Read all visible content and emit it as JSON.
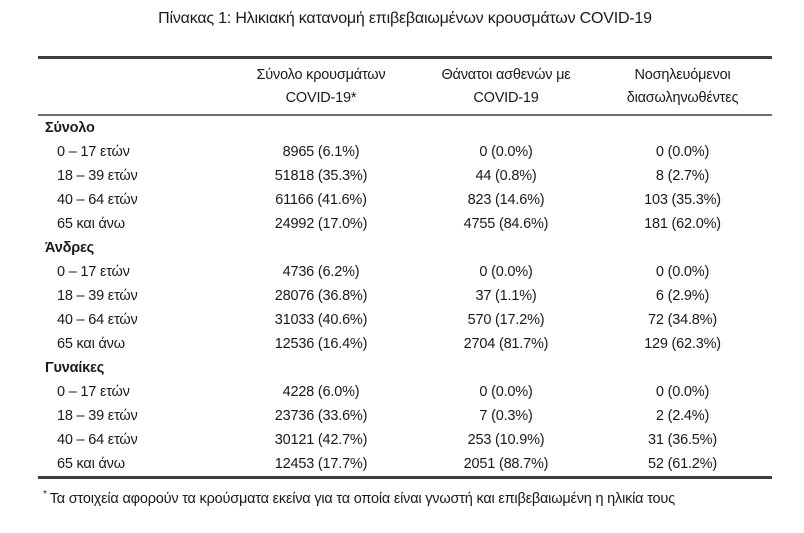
{
  "page": {
    "title": "Πίνακας 1: Ηλικιακή κατανομή επιβεβαιωμένων κρουσμάτων COVID-19"
  },
  "table": {
    "headers": [
      {
        "line1": "Σύνολο κρουσμάτων",
        "line2": "COVID-19*"
      },
      {
        "line1": "Θάνατοι ασθενών με",
        "line2": "COVID-19"
      },
      {
        "line1": "Νοσηλευόμενοι",
        "line2": "διασωληνωθέντες"
      }
    ],
    "sections": [
      {
        "label": "Σύνολο",
        "rows": [
          {
            "label": "0 – 17 ετών",
            "cases": "8965 (6.1%)",
            "deaths": "0 (0.0%)",
            "intubated": "0 (0.0%)"
          },
          {
            "label": "18 – 39 ετών",
            "cases": "51818 (35.3%)",
            "deaths": "44 (0.8%)",
            "intubated": "8 (2.7%)"
          },
          {
            "label": "40 – 64 ετών",
            "cases": "61166 (41.6%)",
            "deaths": "823 (14.6%)",
            "intubated": "103 (35.3%)"
          },
          {
            "label": "65 και άνω",
            "cases": "24992 (17.0%)",
            "deaths": "4755 (84.6%)",
            "intubated": "181 (62.0%)"
          }
        ]
      },
      {
        "label": "Άνδρες",
        "rows": [
          {
            "label": "0 – 17 ετών",
            "cases": "4736 (6.2%)",
            "deaths": "0 (0.0%)",
            "intubated": "0 (0.0%)"
          },
          {
            "label": "18 – 39 ετών",
            "cases": "28076 (36.8%)",
            "deaths": "37 (1.1%)",
            "intubated": "6 (2.9%)"
          },
          {
            "label": "40 – 64 ετών",
            "cases": "31033 (40.6%)",
            "deaths": "570 (17.2%)",
            "intubated": "72 (34.8%)"
          },
          {
            "label": "65 και άνω",
            "cases": "12536 (16.4%)",
            "deaths": "2704 (81.7%)",
            "intubated": "129 (62.3%)"
          }
        ]
      },
      {
        "label": "Γυναίκες",
        "rows": [
          {
            "label": "0 – 17 ετών",
            "cases": "4228 (6.0%)",
            "deaths": "0 (0.0%)",
            "intubated": "0 (0.0%)"
          },
          {
            "label": "18 – 39 ετών",
            "cases": "23736 (33.6%)",
            "deaths": "7 (0.3%)",
            "intubated": "2 (2.4%)"
          },
          {
            "label": "40 – 64 ετών",
            "cases": "30121 (42.7%)",
            "deaths": "253 (10.9%)",
            "intubated": "31 (36.5%)"
          },
          {
            "label": "65 και άνω",
            "cases": "12453 (17.7%)",
            "deaths": "2051 (88.7%)",
            "intubated": "52 (61.2%)"
          }
        ]
      }
    ]
  },
  "footnote": {
    "marker": "*",
    "text": "Τα στοιχεία αφορούν τα κρούσματα εκείνα για τα οποία είναι γνωστή και επιβεβαιωμένη η ηλικία τους"
  },
  "colors": {
    "background": "#ffffff",
    "text": "#1a1a1a",
    "rule_heavy": "#3f3f3f",
    "rule_light": "#6e6e6e"
  }
}
